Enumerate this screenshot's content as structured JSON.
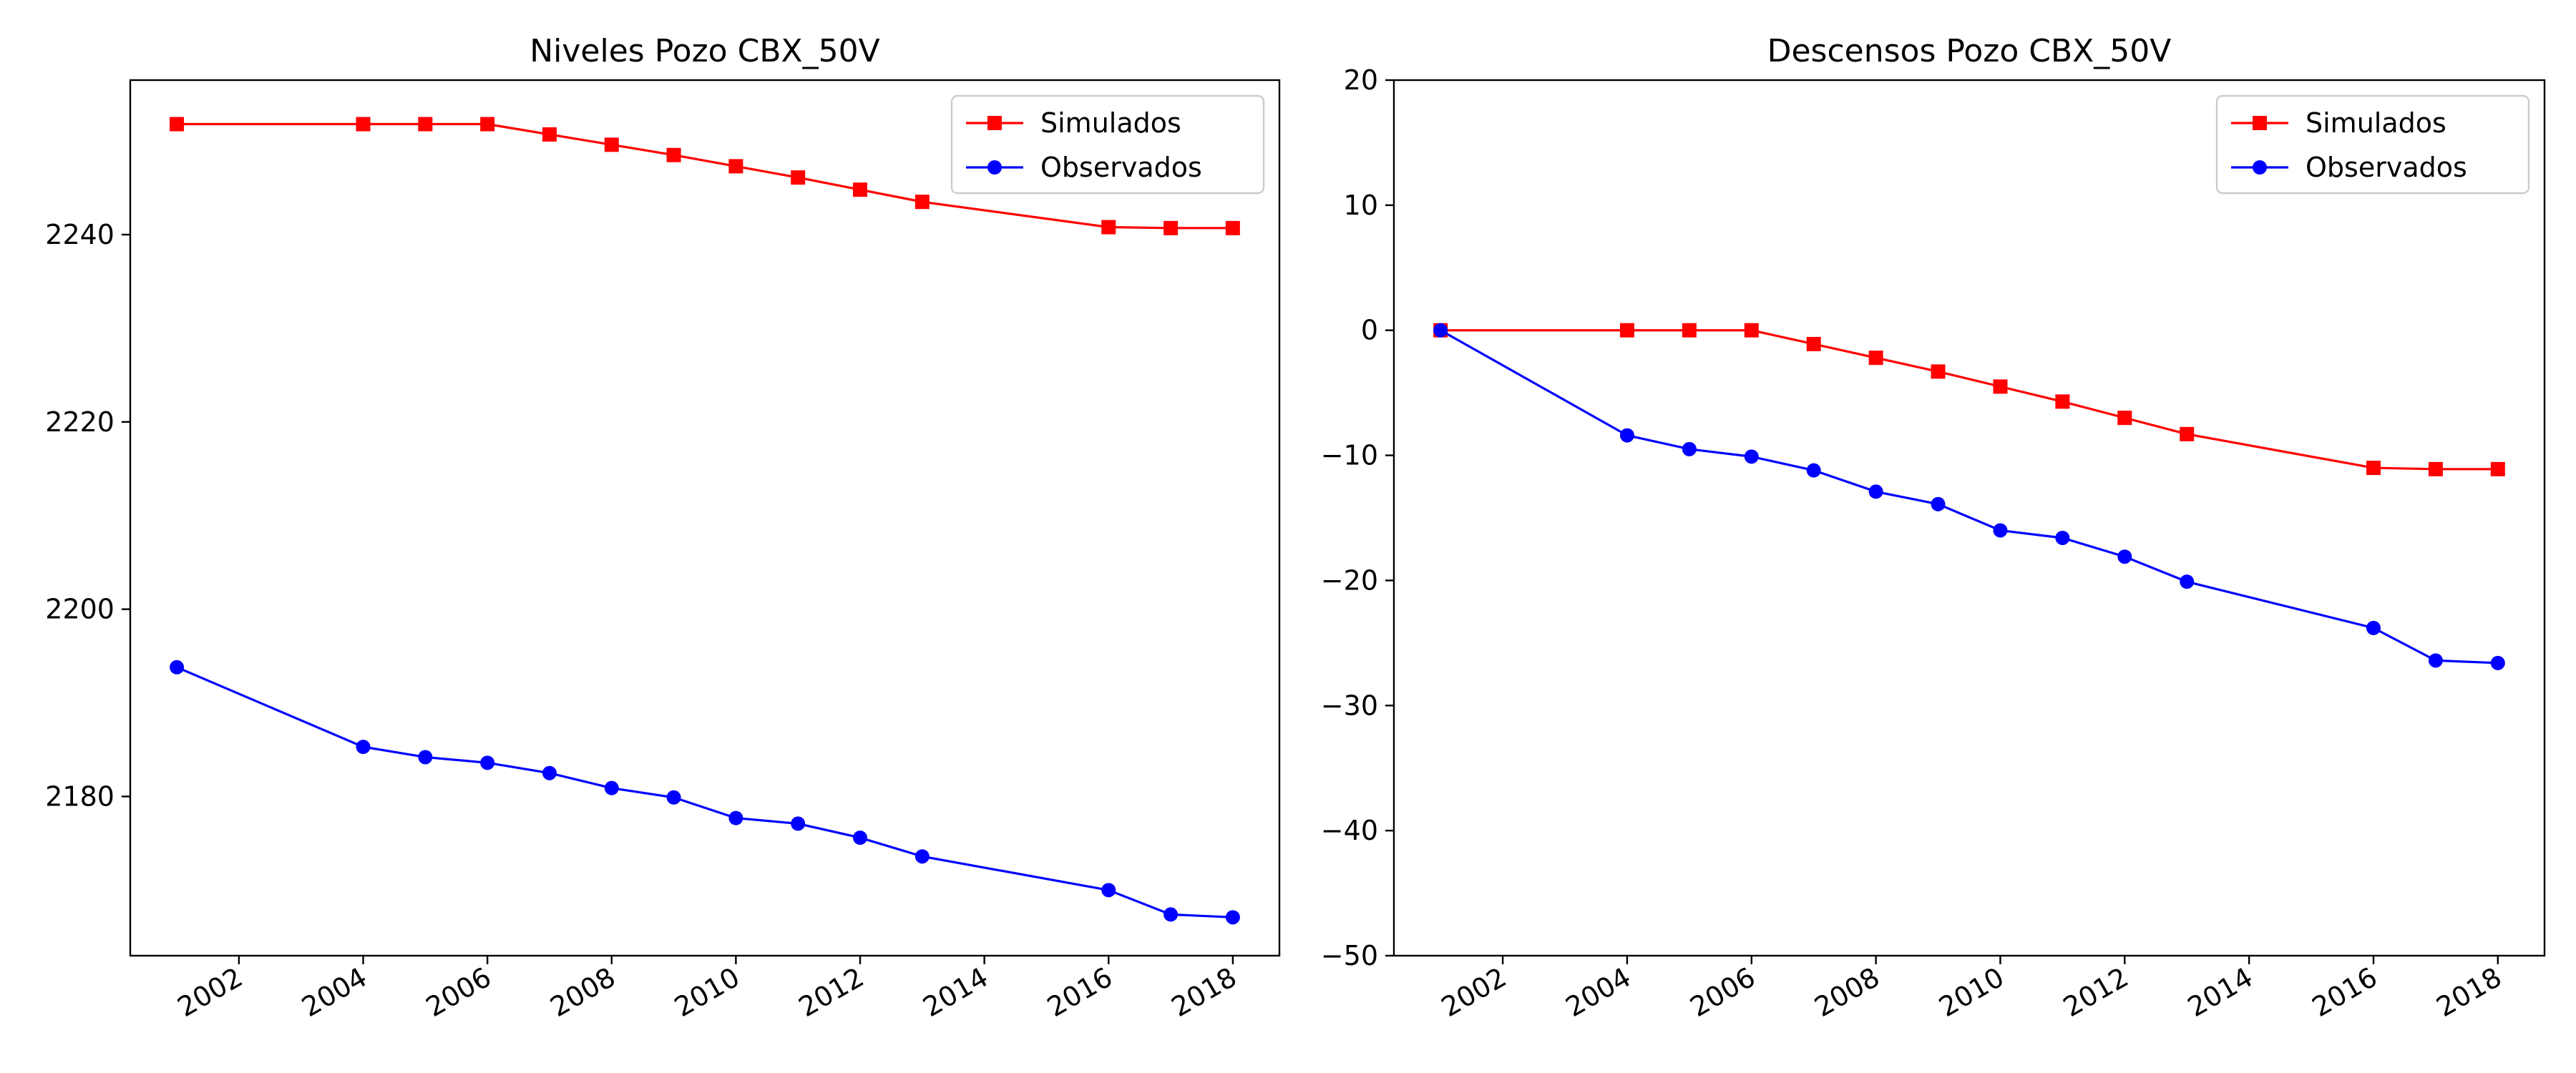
{
  "chart_data": [
    {
      "type": "line",
      "title": "Niveles Pozo CBX_50V",
      "xlabel": "",
      "ylabel": "",
      "x": [
        "2001-01",
        "2004-01",
        "2005-01",
        "2006-01",
        "2007-01",
        "2008-01",
        "2009-01",
        "2010-01",
        "2011-01",
        "2012-01",
        "2013-01",
        "2016-01",
        "2017-01",
        "2018-01"
      ],
      "xlim": [
        "2000-04",
        "2018-10"
      ],
      "ylim": [
        2163,
        2256.5
      ],
      "yticks": [
        2180,
        2200,
        2220,
        2240
      ],
      "xticks": [
        "2002",
        "2004",
        "2006",
        "2008",
        "2010",
        "2012",
        "2014",
        "2016",
        "2018"
      ],
      "grid": false,
      "legend_position": "top-right",
      "series": [
        {
          "name": "Simulados",
          "color": "#ff0000",
          "marker": "square",
          "values": [
            2251.8,
            2251.8,
            2251.8,
            2251.8,
            2250.7,
            2249.6,
            2248.5,
            2247.3,
            2246.1,
            2244.8,
            2243.5,
            2240.8,
            2240.7,
            2240.7
          ]
        },
        {
          "name": "Observados",
          "color": "#0000ff",
          "marker": "circle",
          "values": [
            2193.8,
            2185.3,
            2184.2,
            2183.6,
            2182.5,
            2180.9,
            2179.9,
            2177.7,
            2177.1,
            2175.6,
            2173.6,
            2170.0,
            2167.4,
            2167.1
          ]
        }
      ]
    },
    {
      "type": "line",
      "title": "Descensos Pozo CBX_50V",
      "xlabel": "",
      "ylabel": "",
      "x": [
        "2001-01",
        "2004-01",
        "2005-01",
        "2006-01",
        "2007-01",
        "2008-01",
        "2009-01",
        "2010-01",
        "2011-01",
        "2012-01",
        "2013-01",
        "2016-01",
        "2017-01",
        "2018-01"
      ],
      "xlim": [
        "2000-04",
        "2018-10"
      ],
      "ylim": [
        -50,
        20
      ],
      "yticks": [
        -50,
        -40,
        -30,
        -20,
        -10,
        0,
        10,
        20
      ],
      "xticks": [
        "2002",
        "2004",
        "2006",
        "2008",
        "2010",
        "2012",
        "2014",
        "2016",
        "2018"
      ],
      "grid": false,
      "legend_position": "top-right",
      "series": [
        {
          "name": "Simulados",
          "color": "#ff0000",
          "marker": "square",
          "values": [
            0,
            0,
            0,
            0,
            -1.1,
            -2.2,
            -3.3,
            -4.5,
            -5.7,
            -7.0,
            -8.3,
            -11.0,
            -11.1,
            -11.1
          ]
        },
        {
          "name": "Observados",
          "color": "#0000ff",
          "marker": "circle",
          "values": [
            0,
            -8.4,
            -9.5,
            -10.1,
            -11.2,
            -12.9,
            -13.9,
            -16.0,
            -16.6,
            -18.1,
            -20.1,
            -23.8,
            -26.4,
            -26.6
          ]
        }
      ]
    }
  ]
}
